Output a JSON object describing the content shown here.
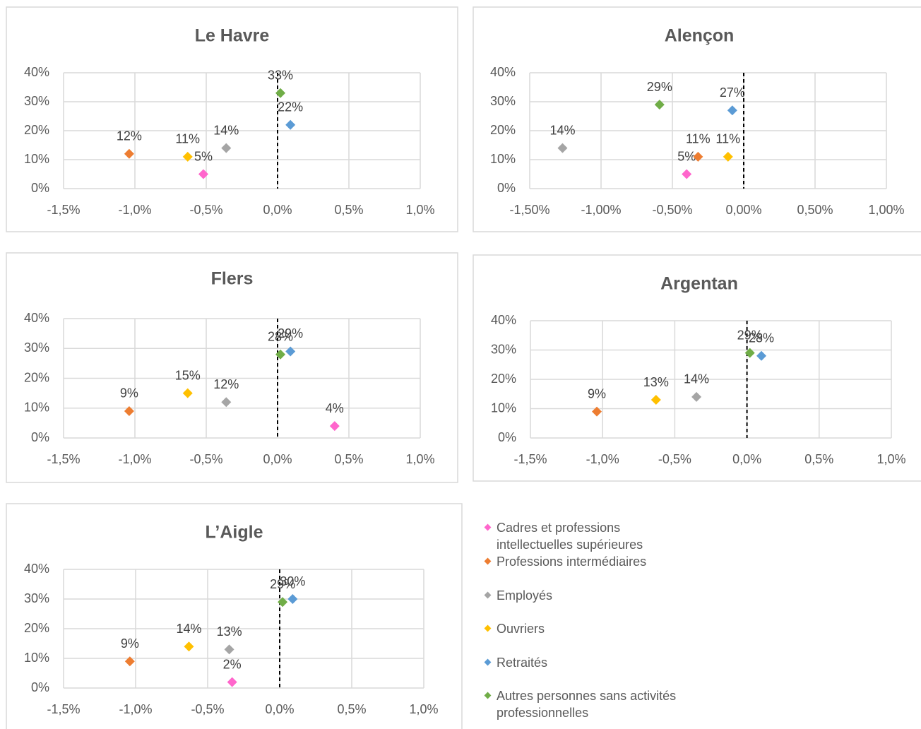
{
  "legend": [
    {
      "name": "Cadres et professions intellectuelles supérieures",
      "color": "#ff66cc"
    },
    {
      "name": "Professions intermédiaires",
      "color": "#ed7d31"
    },
    {
      "name": "Employés",
      "color": "#a5a5a5"
    },
    {
      "name": "Ouvriers",
      "color": "#ffc000"
    },
    {
      "name": "Retraités",
      "color": "#5b9bd5"
    },
    {
      "name": "Autres personnes sans activités professionnelles",
      "color": "#70ad47"
    }
  ],
  "chart_data": [
    {
      "type": "scatter",
      "title": "Le Havre",
      "grid": true,
      "xlim": [
        -1.5,
        1.0
      ],
      "xticks": [
        {
          "value": -1.5,
          "label": "-1,5%"
        },
        {
          "value": -1.0,
          "label": "-1,0%"
        },
        {
          "value": -0.5,
          "label": "-0,5%"
        },
        {
          "value": 0,
          "label": "0,0%"
        },
        {
          "value": 0.5,
          "label": "0,5%"
        },
        {
          "value": 1.0,
          "label": "1,0%"
        }
      ],
      "ylim": [
        0,
        40
      ],
      "yticks": [
        {
          "value": 0,
          "label": "0%"
        },
        {
          "value": 10,
          "label": "10%"
        },
        {
          "value": 20,
          "label": "20%"
        },
        {
          "value": 30,
          "label": "30%"
        },
        {
          "value": 40,
          "label": "40%"
        }
      ],
      "series": [
        {
          "x": [
            -0.52
          ],
          "values": [
            5
          ],
          "value_labels": [
            "5%"
          ]
        },
        {
          "x": [
            -1.04
          ],
          "values": [
            12
          ],
          "value_labels": [
            "12%"
          ]
        },
        {
          "x": [
            -0.36
          ],
          "values": [
            14
          ],
          "value_labels": [
            "14%"
          ]
        },
        {
          "x": [
            -0.63
          ],
          "values": [
            11
          ],
          "value_labels": [
            "11%"
          ]
        },
        {
          "x": [
            0.09
          ],
          "values": [
            22
          ],
          "value_labels": [
            "22%"
          ]
        },
        {
          "x": [
            0.02
          ],
          "values": [
            33
          ],
          "value_labels": [
            "33%"
          ]
        }
      ]
    },
    {
      "type": "scatter",
      "title": "Alençon",
      "grid": true,
      "xlim": [
        -1.5,
        1.0
      ],
      "xticks": [
        {
          "value": -1.5,
          "label": "-1,50%"
        },
        {
          "value": -1.0,
          "label": "-1,00%"
        },
        {
          "value": -0.5,
          "label": "-0,50%"
        },
        {
          "value": 0,
          "label": "0,00%"
        },
        {
          "value": 0.5,
          "label": "0,50%"
        },
        {
          "value": 1.0,
          "label": "1,00%"
        }
      ],
      "ylim": [
        0,
        40
      ],
      "yticks": [
        {
          "value": 0,
          "label": "0%"
        },
        {
          "value": 10,
          "label": "10%"
        },
        {
          "value": 20,
          "label": "20%"
        },
        {
          "value": 30,
          "label": "30%"
        },
        {
          "value": 40,
          "label": "40%"
        }
      ],
      "series": [
        {
          "x": [
            -0.4
          ],
          "values": [
            5
          ],
          "value_labels": [
            "5%"
          ]
        },
        {
          "x": [
            -0.32
          ],
          "values": [
            11
          ],
          "value_labels": [
            "11%"
          ]
        },
        {
          "x": [
            -1.27
          ],
          "values": [
            14
          ],
          "value_labels": [
            "14%"
          ]
        },
        {
          "x": [
            -0.11
          ],
          "values": [
            11
          ],
          "value_labels": [
            "11%"
          ]
        },
        {
          "x": [
            -0.08
          ],
          "values": [
            27
          ],
          "value_labels": [
            "27%"
          ]
        },
        {
          "x": [
            -0.59
          ],
          "values": [
            29
          ],
          "value_labels": [
            "29%"
          ]
        }
      ]
    },
    {
      "type": "scatter",
      "title": "Flers",
      "grid": true,
      "xlim": [
        -1.5,
        1.0
      ],
      "xticks": [
        {
          "value": -1.5,
          "label": "-1,5%"
        },
        {
          "value": -1.0,
          "label": "-1,0%"
        },
        {
          "value": -0.5,
          "label": "-0,5%"
        },
        {
          "value": 0,
          "label": "0,0%"
        },
        {
          "value": 0.5,
          "label": "0,5%"
        },
        {
          "value": 1.0,
          "label": "1,0%"
        }
      ],
      "ylim": [
        0,
        40
      ],
      "yticks": [
        {
          "value": 0,
          "label": "0%"
        },
        {
          "value": 10,
          "label": "10%"
        },
        {
          "value": 20,
          "label": "20%"
        },
        {
          "value": 30,
          "label": "30%"
        },
        {
          "value": 40,
          "label": "40%"
        }
      ],
      "series": [
        {
          "x": [
            0.4
          ],
          "values": [
            4
          ],
          "value_labels": [
            "4%"
          ]
        },
        {
          "x": [
            -1.04
          ],
          "values": [
            9
          ],
          "value_labels": [
            "9%"
          ]
        },
        {
          "x": [
            -0.36
          ],
          "values": [
            12
          ],
          "value_labels": [
            "12%"
          ]
        },
        {
          "x": [
            -0.63
          ],
          "values": [
            15
          ],
          "value_labels": [
            "15%"
          ]
        },
        {
          "x": [
            0.09
          ],
          "values": [
            29
          ],
          "value_labels": [
            "29%"
          ]
        },
        {
          "x": [
            0.02
          ],
          "values": [
            28
          ],
          "value_labels": [
            "28%"
          ]
        }
      ]
    },
    {
      "type": "scatter",
      "title": "Argentan",
      "grid": true,
      "xlim": [
        -1.5,
        1.0
      ],
      "xticks": [
        {
          "value": -1.5,
          "label": "-1,5%"
        },
        {
          "value": -1.0,
          "label": "-1,0%"
        },
        {
          "value": -0.5,
          "label": "-0,5%"
        },
        {
          "value": 0,
          "label": "0,0%"
        },
        {
          "value": 0.5,
          "label": "0,5%"
        },
        {
          "value": 1.0,
          "label": "1,0%"
        }
      ],
      "ylim": [
        0,
        40
      ],
      "yticks": [
        {
          "value": 0,
          "label": "0%"
        },
        {
          "value": 10,
          "label": "10%"
        },
        {
          "value": 20,
          "label": "20%"
        },
        {
          "value": 30,
          "label": "30%"
        },
        {
          "value": 40,
          "label": "40%"
        }
      ],
      "series": [
        {
          "x": [
            null
          ],
          "values": [
            null
          ],
          "value_labels": [
            null
          ]
        },
        {
          "x": [
            -1.04
          ],
          "values": [
            9
          ],
          "value_labels": [
            "9%"
          ]
        },
        {
          "x": [
            -0.35
          ],
          "values": [
            14
          ],
          "value_labels": [
            "14%"
          ]
        },
        {
          "x": [
            -0.63
          ],
          "values": [
            13
          ],
          "value_labels": [
            "13%"
          ]
        },
        {
          "x": [
            0.1
          ],
          "values": [
            28
          ],
          "value_labels": [
            "28%"
          ]
        },
        {
          "x": [
            0.02
          ],
          "values": [
            29
          ],
          "value_labels": [
            "29%"
          ]
        }
      ]
    },
    {
      "type": "scatter",
      "title": "L’Aigle",
      "grid": true,
      "xlim": [
        -1.5,
        1.0
      ],
      "xticks": [
        {
          "value": -1.5,
          "label": "-1,5%"
        },
        {
          "value": -1.0,
          "label": "-1,0%"
        },
        {
          "value": -0.5,
          "label": "-0,5%"
        },
        {
          "value": 0,
          "label": "0,0%"
        },
        {
          "value": 0.5,
          "label": "0,5%"
        },
        {
          "value": 1.0,
          "label": "1,0%"
        }
      ],
      "ylim": [
        0,
        40
      ],
      "yticks": [
        {
          "value": 0,
          "label": "0%"
        },
        {
          "value": 10,
          "label": "10%"
        },
        {
          "value": 20,
          "label": "20%"
        },
        {
          "value": 30,
          "label": "30%"
        },
        {
          "value": 40,
          "label": "40%"
        }
      ],
      "series": [
        {
          "x": [
            -0.33
          ],
          "values": [
            2
          ],
          "value_labels": [
            "2%"
          ]
        },
        {
          "x": [
            -1.04
          ],
          "values": [
            9
          ],
          "value_labels": [
            "9%"
          ]
        },
        {
          "x": [
            -0.35
          ],
          "values": [
            13
          ],
          "value_labels": [
            "13%"
          ]
        },
        {
          "x": [
            -0.63
          ],
          "values": [
            14
          ],
          "value_labels": [
            "14%"
          ]
        },
        {
          "x": [
            0.09
          ],
          "values": [
            30
          ],
          "value_labels": [
            "30%"
          ]
        },
        {
          "x": [
            0.02
          ],
          "values": [
            29
          ],
          "value_labels": [
            "29%"
          ]
        }
      ]
    }
  ]
}
